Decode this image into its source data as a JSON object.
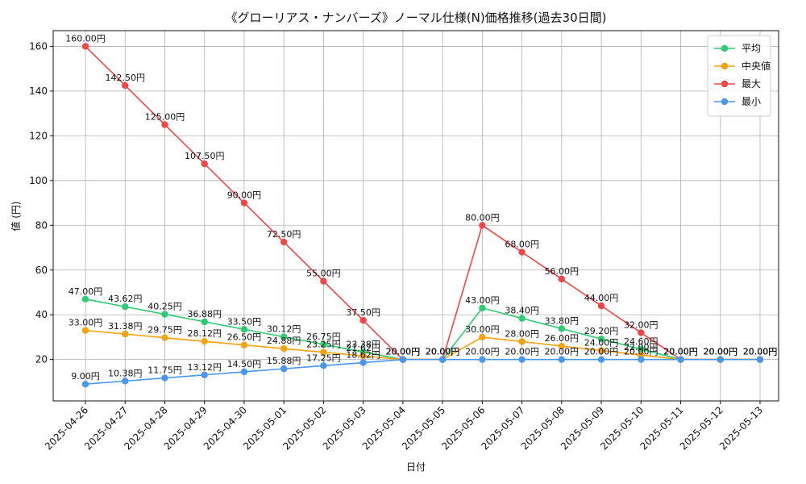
{
  "chart_data": {
    "type": "line",
    "title": "《グローリアス・ナンバーズ》ノーマル仕様(N)価格推移(過去30日間)",
    "xlabel": "日付",
    "ylabel": "値 (円)",
    "ylim": [
      1.5,
      167
    ],
    "yticks": [
      20,
      40,
      60,
      80,
      100,
      120,
      140,
      160
    ],
    "grid": true,
    "legend_position": "top-right",
    "value_suffix": "円",
    "categories": [
      "2025-04-26",
      "2025-04-27",
      "2025-04-28",
      "2025-04-29",
      "2025-04-30",
      "2025-05-01",
      "2025-05-02",
      "2025-05-03",
      "2025-05-04",
      "2025-05-05",
      "2025-05-06",
      "2025-05-07",
      "2025-05-08",
      "2025-05-09",
      "2025-05-10",
      "2025-05-11",
      "2025-05-12",
      "2025-05-13"
    ],
    "series": [
      {
        "name": "平均",
        "color": "#2ecc71",
        "values": [
          47.0,
          43.62,
          40.25,
          36.88,
          33.5,
          30.12,
          26.75,
          23.38,
          20.0,
          20.0,
          43.0,
          38.4,
          33.8,
          29.2,
          24.6,
          20.0,
          20.0,
          20.0
        ]
      },
      {
        "name": "中央値",
        "color": "#f5a20c",
        "values": [
          33.0,
          31.38,
          29.75,
          28.12,
          26.5,
          24.88,
          23.25,
          21.62,
          20.0,
          20.0,
          30.0,
          28.0,
          26.0,
          24.0,
          22.0,
          20.0,
          20.0,
          20.0
        ]
      },
      {
        "name": "最大",
        "color": "#f04646",
        "values": [
          160.0,
          142.5,
          125.0,
          107.5,
          90.0,
          72.5,
          55.0,
          37.5,
          20.0,
          20.0,
          80.0,
          68.0,
          56.0,
          44.0,
          32.0,
          20.0,
          20.0,
          20.0
        ]
      },
      {
        "name": "最小",
        "color": "#4a97f0",
        "values": [
          9.0,
          10.38,
          11.75,
          13.12,
          14.5,
          15.88,
          17.25,
          18.62,
          20.0,
          20.0,
          20.0,
          20.0,
          20.0,
          20.0,
          20.0,
          20.0,
          20.0,
          20.0
        ]
      }
    ]
  }
}
